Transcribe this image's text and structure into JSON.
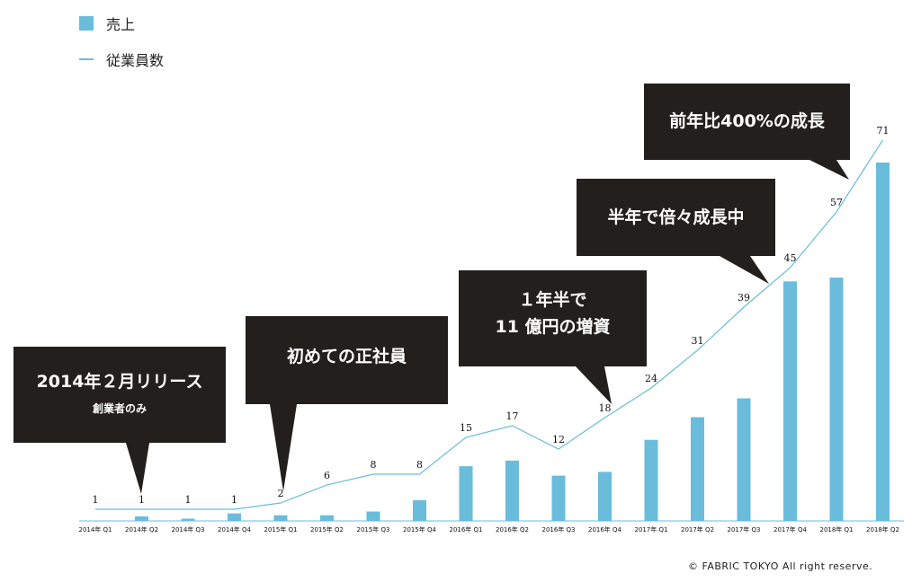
{
  "legend": {
    "bar_label": "売上",
    "line_label": "従業員数"
  },
  "chart_data": {
    "type": "bar",
    "categories": [
      "2014年 Q1",
      "2014年 Q2",
      "2014年 Q3",
      "2014年 Q4",
      "2015年 Q1",
      "2015年 Q2",
      "2015年 Q3",
      "2015年 Q4",
      "2016年 Q1",
      "2016年 Q2",
      "2016年 Q3",
      "2016年 Q4",
      "2017年 Q1",
      "2017年 Q2",
      "2017年 Q3",
      "2017年 Q4",
      "2018年 Q1",
      "2018年 Q2"
    ],
    "series": [
      {
        "name": "売上",
        "type": "bar",
        "color": "#6abcdb",
        "values": [
          0,
          1.2,
          0.6,
          2.0,
          1.5,
          1.5,
          2.5,
          5.5,
          14.5,
          16.0,
          12.0,
          13.0,
          21.5,
          27.5,
          32.5,
          63.5,
          64.5,
          95.0
        ]
      },
      {
        "name": "従業員数",
        "type": "line",
        "color": "#6abcdb",
        "values": [
          1,
          1,
          1,
          1,
          2,
          6,
          8,
          8,
          15,
          17,
          12,
          18,
          24,
          31,
          39,
          45,
          57,
          71
        ]
      }
    ],
    "ylim": [
      0,
      100
    ],
    "grid": false
  },
  "callouts": [
    {
      "title": "2014年２月リリース",
      "subtitle": "創業者のみ"
    },
    {
      "title": "初めての正社員"
    },
    {
      "title": "１年半で",
      "title2": "11 億円の増資"
    },
    {
      "title": "半年で倍々成長中"
    },
    {
      "title": "前年比400%の成長"
    }
  ],
  "copyright": "© FABRIC TOKYO All right reserve."
}
